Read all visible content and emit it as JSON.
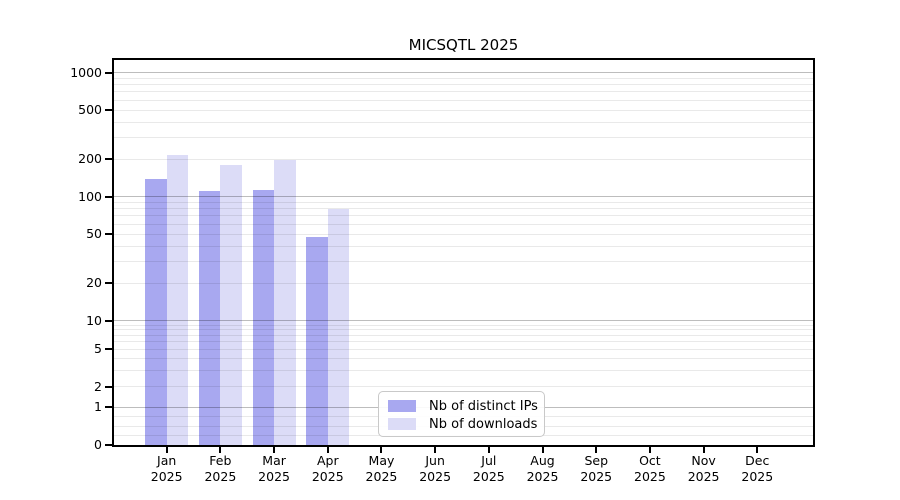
{
  "chart_data": {
    "type": "bar",
    "title": "MICSQTL 2025",
    "categories": [
      "Jan",
      "Feb",
      "Mar",
      "Apr",
      "May",
      "Jun",
      "Jul",
      "Aug",
      "Sep",
      "Oct",
      "Nov",
      "Dec"
    ],
    "year_label": "2025",
    "series": [
      {
        "name": "Nb of distinct IPs",
        "color": "#a8a8f0",
        "values": [
          140,
          112,
          113,
          47,
          0,
          0,
          0,
          0,
          0,
          0,
          0,
          0
        ]
      },
      {
        "name": "Nb of downloads",
        "color": "#dcdcf7",
        "values": [
          215,
          181,
          197,
          79,
          0,
          0,
          0,
          0,
          0,
          0,
          0,
          0
        ]
      }
    ],
    "yscale": "symlog",
    "y_ticks": [
      0,
      1,
      2,
      5,
      10,
      20,
      50,
      100,
      200,
      500,
      1000
    ],
    "ylim": [
      0,
      1300
    ],
    "xlabel": "",
    "ylabel": "",
    "grid": "both",
    "legend_position": "lower-center",
    "colors": {
      "background": "#ffffff",
      "frame": "#000000",
      "major_grid": "#c2c2c2",
      "minor_grid": "#ebebeb",
      "text": "#000000"
    }
  }
}
